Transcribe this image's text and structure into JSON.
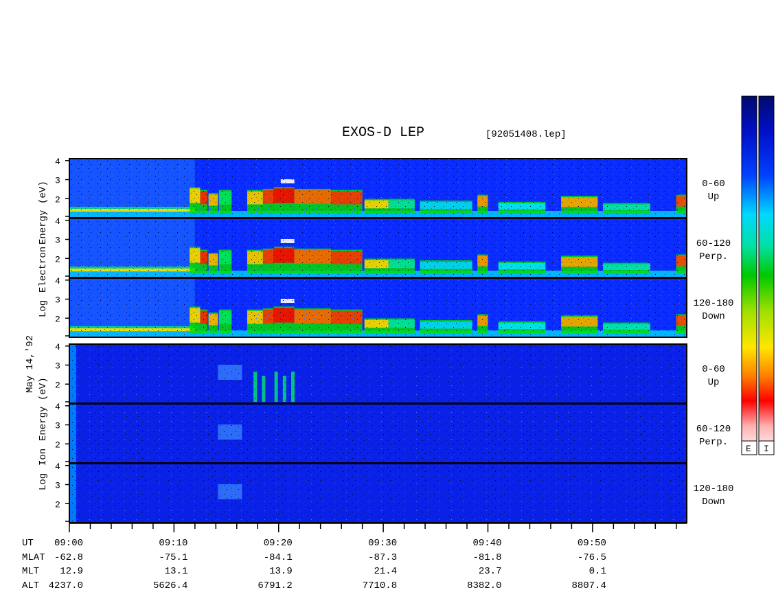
{
  "title": "EXOS-D LEP",
  "file_label": "[92051408.lep]",
  "date_label": "May 14,'92",
  "colorbar": {
    "labels": [
      "E",
      "I"
    ]
  },
  "electron_label": [
    "Log",
    "Electron",
    "Energy",
    "(eV)"
  ],
  "ion_label": [
    "Log",
    "Ion",
    "Energy",
    "(eV)"
  ],
  "panel_labels": [
    [
      "0-60",
      "Up"
    ],
    [
      "60-120",
      "Perp."
    ],
    [
      "120-180",
      "Down"
    ],
    [
      "0-60",
      "Up"
    ],
    [
      "60-120",
      "Perp."
    ],
    [
      "120-180",
      "Down"
    ]
  ],
  "info_rows": {
    "labels": [
      "UT",
      "MLAT",
      "MLT",
      "ALT"
    ],
    "columns": [
      [
        "09:00",
        "-62.8",
        "12.9",
        "4237.0"
      ],
      [
        "09:10",
        "-75.1",
        "13.1",
        "5626.4"
      ],
      [
        "09:20",
        "-84.1",
        "13.9",
        "6791.2"
      ],
      [
        "09:30",
        "-87.3",
        "21.4",
        "7710.8"
      ],
      [
        "09:40",
        "-81.8",
        "23.7",
        "8382.0"
      ],
      [
        "09:50",
        "-76.5",
        "0.1",
        "8807.4"
      ]
    ]
  },
  "chart_data": {
    "type": "heatmap",
    "title": "EXOS-D LEP",
    "xlabel": "UT",
    "x_ticks": [
      "09:00",
      "09:10",
      "09:20",
      "09:30",
      "09:40",
      "09:50"
    ],
    "ylabel_electron": "Log Electron Energy (eV)",
    "ylabel_ion": "Log Ion Energy (eV)",
    "y_ticks": [
      2,
      3,
      4
    ],
    "ylim": [
      1,
      4.1
    ],
    "xlim_minutes": [
      0,
      59
    ],
    "panels": [
      {
        "species": "Electron",
        "pitch_angle": "0-60",
        "direction": "Up"
      },
      {
        "species": "Electron",
        "pitch_angle": "60-120",
        "direction": "Perp."
      },
      {
        "species": "Electron",
        "pitch_angle": "120-180",
        "direction": "Down"
      },
      {
        "species": "Ion",
        "pitch_angle": "0-60",
        "direction": "Up"
      },
      {
        "species": "Ion",
        "pitch_angle": "60-120",
        "direction": "Perp."
      },
      {
        "species": "Ion",
        "pitch_angle": "120-180",
        "direction": "Down"
      }
    ],
    "colorbars": [
      "E",
      "I"
    ],
    "colors": [
      "#000a6e",
      "#0022ff",
      "#00e6ff",
      "#00c800",
      "#ffe600",
      "#ff0000",
      "#ffffff"
    ]
  }
}
